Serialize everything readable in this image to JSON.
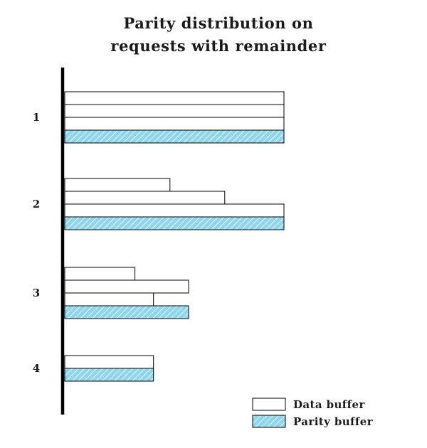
{
  "title": {
    "line1": "Parity distribution on",
    "line2": "requests with remainder"
  },
  "colors": {
    "data_fill": "#ffffff",
    "parity_fill": "#8fd6ec",
    "parity_stripe": "#ffffff",
    "stroke": "#000000"
  },
  "legend": [
    {
      "kind": "data",
      "label": "Data buffer"
    },
    {
      "kind": "parity",
      "label": "Parity buffer"
    }
  ],
  "groups": [
    {
      "label": "1",
      "buffers": [
        {
          "kind": "data",
          "length": 1.0
        },
        {
          "kind": "data",
          "length": 1.0
        },
        {
          "kind": "data",
          "length": 1.0
        },
        {
          "kind": "parity",
          "length": 1.0
        }
      ]
    },
    {
      "label": "2",
      "buffers": [
        {
          "kind": "data",
          "length": 0.48
        },
        {
          "kind": "data",
          "length": 0.73
        },
        {
          "kind": "data",
          "length": 1.0
        },
        {
          "kind": "parity",
          "length": 1.0
        }
      ]
    },
    {
      "label": "3",
      "buffers": [
        {
          "kind": "data",
          "length": 0.32
        },
        {
          "kind": "data",
          "length": 0.565
        },
        {
          "kind": "data",
          "length": 0.405
        },
        {
          "kind": "parity",
          "length": 0.565
        }
      ]
    },
    {
      "label": "4",
      "buffers": [
        {
          "kind": "data",
          "length": 0.405
        },
        {
          "kind": "parity",
          "length": 0.405
        }
      ]
    }
  ]
}
